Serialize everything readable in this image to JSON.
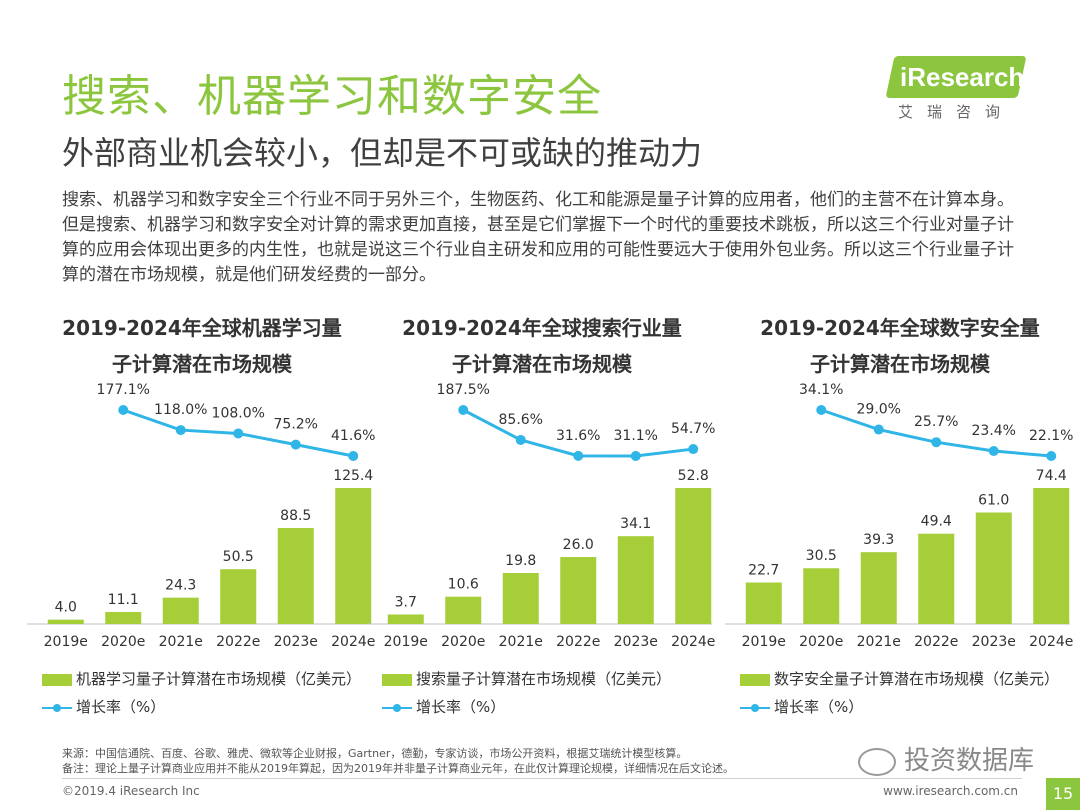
{
  "header": {
    "title": "搜索、机器学习和数字安全",
    "subtitle": "外部商业机会较小，但却是不可或缺的推动力",
    "logo_main": "iResearch",
    "logo_sub": "艾瑞咨询"
  },
  "description": "搜索、机器学习和数字安全三个行业不同于另外三个，生物医药、化工和能源是量子计算的应用者，他们的主营不在计算本身。但是搜索、机器学习和数字安全对计算的需求更加直接，甚至是它们掌握下一个时代的重要技术跳板，所以这三个行业对量子计算的应用会体现出更多的内生性，也就是说这三个行业自主研发和应用的可能性要远大于使用外包业务。所以这三个行业量子计算的潜在市场规模，就是他们研发经费的一部分。",
  "colors": {
    "accent": "#8cc63f",
    "bar": "#a6ce39",
    "line": "#2fb5e6"
  },
  "chart_data": [
    {
      "type": "bar",
      "title_line1": "2019-2024年全球机器学习量",
      "title_line2": "子计算潜在市场规模",
      "categories": [
        "2019e",
        "2020e",
        "2021e",
        "2022e",
        "2023e",
        "2024e"
      ],
      "series": [
        {
          "name": "机器学习量子计算潜在市场规模（亿美元）",
          "type": "bar",
          "values": [
            4.0,
            11.1,
            24.3,
            50.5,
            88.5,
            125.4
          ],
          "labels": [
            "4.0",
            "11.1",
            "24.3",
            "50.5",
            "88.5",
            "125.4"
          ]
        },
        {
          "name": "增长率（%）",
          "type": "line",
          "values": [
            null,
            177.1,
            118.0,
            108.0,
            75.2,
            41.6
          ],
          "labels": [
            "",
            "177.1%",
            "118.0%",
            "108.0%",
            "75.2%",
            "41.6%"
          ]
        }
      ],
      "bar_max": 125.4,
      "line_range": [
        41.6,
        177.1
      ]
    },
    {
      "type": "bar",
      "title_line1": "2019-2024年全球搜索行业量",
      "title_line2": "子计算潜在市场规模",
      "categories": [
        "2019e",
        "2020e",
        "2021e",
        "2022e",
        "2023e",
        "2024e"
      ],
      "series": [
        {
          "name": "搜索量子计算潜在市场规模（亿美元）",
          "type": "bar",
          "values": [
            3.7,
            10.6,
            19.8,
            26.0,
            34.1,
            52.8
          ],
          "labels": [
            "3.7",
            "10.6",
            "19.8",
            "26.0",
            "34.1",
            "52.8"
          ]
        },
        {
          "name": "增长率（%）",
          "type": "line",
          "values": [
            null,
            187.5,
            85.6,
            31.6,
            31.1,
            54.7
          ],
          "labels": [
            "",
            "187.5%",
            "85.6%",
            "31.6%",
            "31.1%",
            "54.7%"
          ]
        }
      ],
      "bar_max": 52.8,
      "line_range": [
        31.1,
        187.5
      ]
    },
    {
      "type": "bar",
      "title_line1": "2019-2024年全球数字安全量",
      "title_line2": "子计算潜在市场规模",
      "categories": [
        "2019e",
        "2020e",
        "2021e",
        "2022e",
        "2023e",
        "2024e"
      ],
      "series": [
        {
          "name": "数字安全量子计算潜在市场规模（亿美元）",
          "type": "bar",
          "values": [
            22.7,
            30.5,
            39.3,
            49.4,
            61.0,
            74.4
          ],
          "labels": [
            "22.7",
            "30.5",
            "39.3",
            "49.4",
            "61.0",
            "74.4"
          ]
        },
        {
          "name": "增长率（%）",
          "type": "line",
          "values": [
            null,
            34.1,
            29.0,
            25.7,
            23.4,
            22.1
          ],
          "labels": [
            "",
            "34.1%",
            "29.0%",
            "25.7%",
            "23.4%",
            "22.1%"
          ]
        }
      ],
      "bar_max": 74.4,
      "line_range": [
        22.1,
        34.1
      ]
    }
  ],
  "footer": {
    "source": "来源：中国信通院、百度、谷歌、雅虎、微软等企业财报，Gartner，德勤，专家访谈，市场公开资料，根据艾瑞统计模型核算。",
    "note": "备注：理论上量子计算商业应用并不能从2019年算起，因为2019年并非量子计算商业元年，在此仅计算理论规模，详细情况在后文论述。",
    "copyright": "©2019.4 iResearch Inc",
    "website": "www.iresearch.com.cn",
    "page": "15",
    "watermark": "投资数据库"
  }
}
